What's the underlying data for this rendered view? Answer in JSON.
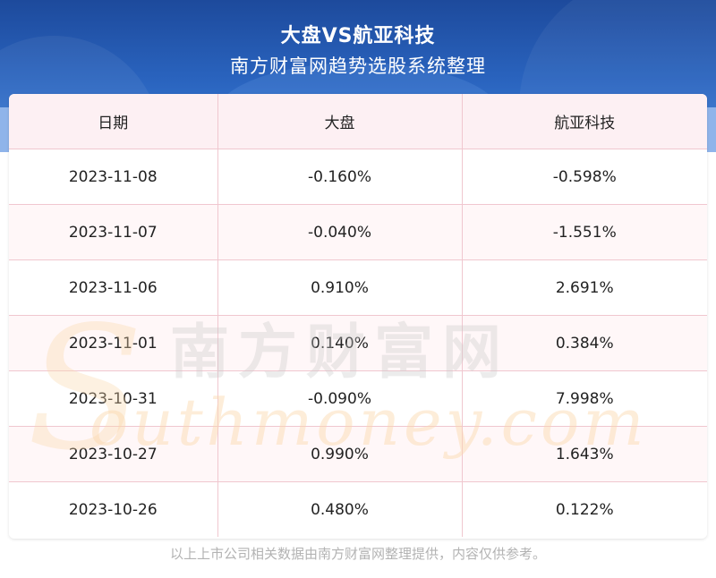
{
  "header": {
    "title": "大盘VS航亚科技",
    "subtitle": "南方财富网趋势选股系统整理"
  },
  "table": {
    "columns": [
      "日期",
      "大盘",
      "航亚科技"
    ],
    "rows": [
      {
        "date": "2023-11-08",
        "market": "-0.160%",
        "stock": "-0.598%"
      },
      {
        "date": "2023-11-07",
        "market": "-0.040%",
        "stock": "-1.551%"
      },
      {
        "date": "2023-11-06",
        "market": "0.910%",
        "stock": "2.691%"
      },
      {
        "date": "2023-11-01",
        "market": "0.140%",
        "stock": "0.384%"
      },
      {
        "date": "2023-10-31",
        "market": "-0.090%",
        "stock": "7.998%"
      },
      {
        "date": "2023-10-27",
        "market": "0.990%",
        "stock": "1.643%"
      },
      {
        "date": "2023-10-26",
        "market": "0.480%",
        "stock": "0.122%"
      }
    ]
  },
  "watermark": {
    "cn": "南方财富网",
    "en": "outhmoney.com",
    "initial": "S"
  },
  "footer": "以上上市公司相关数据由南方财富网整理提供，内容仅供参考。",
  "colors": {
    "banner": "#2a64bf",
    "grid_line": "#f0c7cf",
    "header_row_bg": "#fdf0f3",
    "footer_text": "#b3b3b3"
  }
}
